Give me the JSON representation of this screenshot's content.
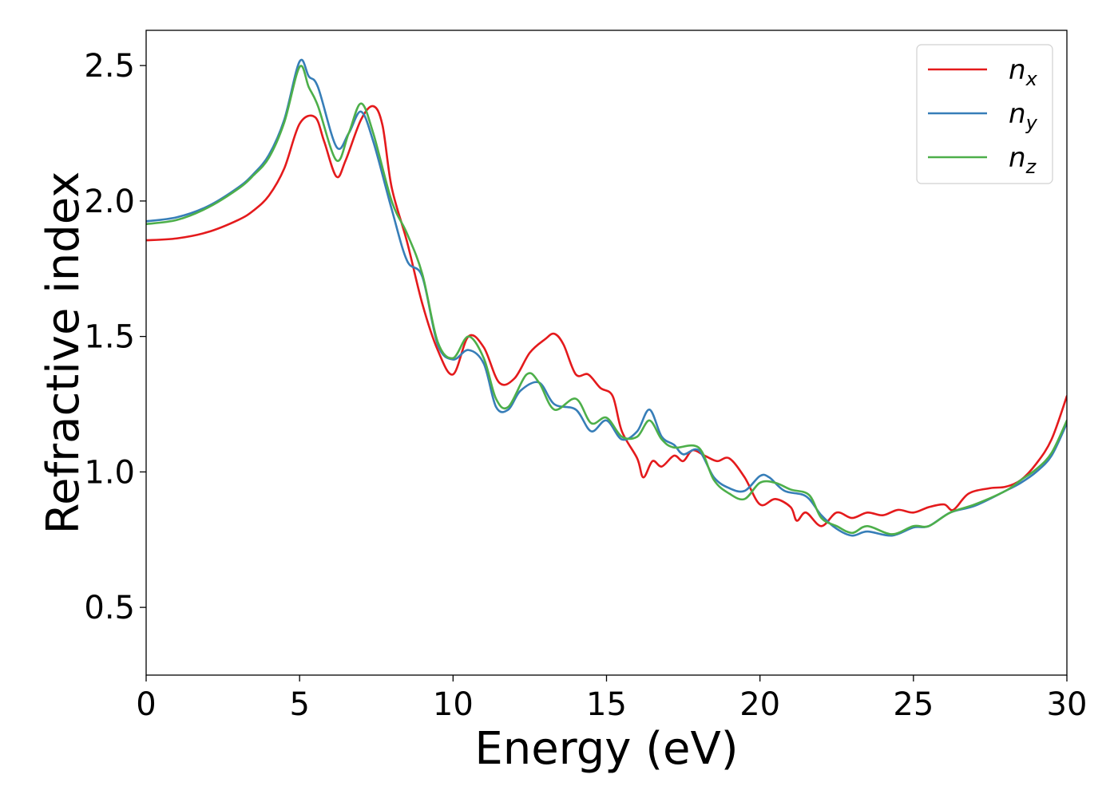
{
  "chart_data": {
    "type": "line",
    "title": "",
    "xlabel": "Energy (eV)",
    "ylabel": "Refractive index",
    "xlim": [
      0,
      30
    ],
    "ylim": [
      0.25,
      2.63
    ],
    "xticks": [
      0,
      5,
      10,
      15,
      20,
      25,
      30
    ],
    "xtick_labels": [
      "0",
      "5",
      "10",
      "15",
      "20",
      "25",
      "30"
    ],
    "yticks": [
      0.5,
      1.0,
      1.5,
      2.0,
      2.5
    ],
    "ytick_labels": [
      "0.5",
      "1.0",
      "1.5",
      "2.0",
      "2.5"
    ],
    "grid": false,
    "legend_position": "top-right",
    "series": [
      {
        "name": "n_x",
        "legend_base": "n",
        "legend_sub": "x",
        "color": "#e41a1c",
        "points": [
          [
            0,
            1.855
          ],
          [
            1,
            1.862
          ],
          [
            2,
            1.885
          ],
          [
            3,
            1.93
          ],
          [
            3.5,
            1.965
          ],
          [
            4,
            2.02
          ],
          [
            4.5,
            2.12
          ],
          [
            5,
            2.285
          ],
          [
            5.5,
            2.31
          ],
          [
            5.8,
            2.22
          ],
          [
            6.2,
            2.09
          ],
          [
            6.5,
            2.15
          ],
          [
            7,
            2.3
          ],
          [
            7.4,
            2.35
          ],
          [
            7.7,
            2.28
          ],
          [
            8,
            2.05
          ],
          [
            8.5,
            1.85
          ],
          [
            9,
            1.62
          ],
          [
            9.5,
            1.45
          ],
          [
            10,
            1.36
          ],
          [
            10.5,
            1.5
          ],
          [
            11,
            1.46
          ],
          [
            11.5,
            1.33
          ],
          [
            12,
            1.345
          ],
          [
            12.5,
            1.44
          ],
          [
            13,
            1.49
          ],
          [
            13.3,
            1.51
          ],
          [
            13.6,
            1.47
          ],
          [
            14,
            1.36
          ],
          [
            14.4,
            1.36
          ],
          [
            14.8,
            1.31
          ],
          [
            15.2,
            1.28
          ],
          [
            15.5,
            1.15
          ],
          [
            16,
            1.05
          ],
          [
            16.2,
            0.98
          ],
          [
            16.5,
            1.04
          ],
          [
            16.8,
            1.02
          ],
          [
            17.2,
            1.06
          ],
          [
            17.5,
            1.04
          ],
          [
            17.8,
            1.08
          ],
          [
            18.2,
            1.06
          ],
          [
            18.6,
            1.04
          ],
          [
            19,
            1.05
          ],
          [
            19.5,
            0.98
          ],
          [
            20,
            0.88
          ],
          [
            20.5,
            0.9
          ],
          [
            21,
            0.87
          ],
          [
            21.2,
            0.82
          ],
          [
            21.5,
            0.85
          ],
          [
            22,
            0.8
          ],
          [
            22.5,
            0.85
          ],
          [
            23,
            0.83
          ],
          [
            23.5,
            0.85
          ],
          [
            24,
            0.84
          ],
          [
            24.5,
            0.86
          ],
          [
            25,
            0.85
          ],
          [
            25.5,
            0.87
          ],
          [
            26,
            0.88
          ],
          [
            26.3,
            0.86
          ],
          [
            26.8,
            0.92
          ],
          [
            27.5,
            0.94
          ],
          [
            28,
            0.945
          ],
          [
            28.5,
            0.97
          ],
          [
            29,
            1.03
          ],
          [
            29.5,
            1.12
          ],
          [
            30,
            1.28
          ]
        ]
      },
      {
        "name": "n_y",
        "legend_base": "n",
        "legend_sub": "y",
        "color": "#377eb8",
        "points": [
          [
            0,
            1.925
          ],
          [
            1,
            1.94
          ],
          [
            2,
            1.98
          ],
          [
            3,
            2.05
          ],
          [
            3.5,
            2.1
          ],
          [
            4,
            2.17
          ],
          [
            4.5,
            2.3
          ],
          [
            5,
            2.515
          ],
          [
            5.3,
            2.46
          ],
          [
            5.6,
            2.42
          ],
          [
            6.2,
            2.2
          ],
          [
            6.6,
            2.25
          ],
          [
            7,
            2.33
          ],
          [
            7.4,
            2.22
          ],
          [
            8,
            1.97
          ],
          [
            8.5,
            1.78
          ],
          [
            9,
            1.72
          ],
          [
            9.5,
            1.47
          ],
          [
            10,
            1.415
          ],
          [
            10.5,
            1.45
          ],
          [
            11,
            1.4
          ],
          [
            11.4,
            1.24
          ],
          [
            11.8,
            1.23
          ],
          [
            12.2,
            1.3
          ],
          [
            12.8,
            1.33
          ],
          [
            13.3,
            1.25
          ],
          [
            14,
            1.23
          ],
          [
            14.5,
            1.15
          ],
          [
            15,
            1.19
          ],
          [
            15.5,
            1.12
          ],
          [
            16,
            1.15
          ],
          [
            16.4,
            1.23
          ],
          [
            16.8,
            1.13
          ],
          [
            17.2,
            1.1
          ],
          [
            17.5,
            1.065
          ],
          [
            18,
            1.08
          ],
          [
            18.5,
            0.98
          ],
          [
            19,
            0.94
          ],
          [
            19.5,
            0.93
          ],
          [
            20,
            0.985
          ],
          [
            20.3,
            0.98
          ],
          [
            20.8,
            0.93
          ],
          [
            21.5,
            0.91
          ],
          [
            22,
            0.84
          ],
          [
            22.5,
            0.79
          ],
          [
            23,
            0.765
          ],
          [
            23.5,
            0.78
          ],
          [
            24.3,
            0.765
          ],
          [
            25,
            0.795
          ],
          [
            25.5,
            0.8
          ],
          [
            26.2,
            0.85
          ],
          [
            27,
            0.875
          ],
          [
            28,
            0.93
          ],
          [
            28.5,
            0.96
          ],
          [
            29,
            1.0
          ],
          [
            29.5,
            1.06
          ],
          [
            30,
            1.18
          ]
        ]
      },
      {
        "name": "n_z",
        "legend_base": "n",
        "legend_sub": "z",
        "color": "#4daf4a",
        "points": [
          [
            0,
            1.915
          ],
          [
            1,
            1.93
          ],
          [
            2,
            1.975
          ],
          [
            3,
            2.045
          ],
          [
            3.5,
            2.095
          ],
          [
            4,
            2.16
          ],
          [
            4.5,
            2.29
          ],
          [
            5,
            2.495
          ],
          [
            5.3,
            2.42
          ],
          [
            5.6,
            2.35
          ],
          [
            6.2,
            2.15
          ],
          [
            6.6,
            2.25
          ],
          [
            7,
            2.36
          ],
          [
            7.4,
            2.25
          ],
          [
            8,
            2.0
          ],
          [
            8.5,
            1.88
          ],
          [
            9,
            1.73
          ],
          [
            9.5,
            1.48
          ],
          [
            10,
            1.42
          ],
          [
            10.5,
            1.5
          ],
          [
            11,
            1.42
          ],
          [
            11.4,
            1.27
          ],
          [
            11.8,
            1.24
          ],
          [
            12.4,
            1.36
          ],
          [
            12.8,
            1.33
          ],
          [
            13.3,
            1.23
          ],
          [
            14,
            1.27
          ],
          [
            14.5,
            1.18
          ],
          [
            15,
            1.2
          ],
          [
            15.5,
            1.13
          ],
          [
            16,
            1.13
          ],
          [
            16.4,
            1.19
          ],
          [
            16.8,
            1.12
          ],
          [
            17.2,
            1.09
          ],
          [
            18,
            1.09
          ],
          [
            18.5,
            0.97
          ],
          [
            19,
            0.92
          ],
          [
            19.5,
            0.9
          ],
          [
            20,
            0.96
          ],
          [
            20.5,
            0.96
          ],
          [
            21,
            0.935
          ],
          [
            21.6,
            0.915
          ],
          [
            22,
            0.83
          ],
          [
            22.5,
            0.8
          ],
          [
            23,
            0.775
          ],
          [
            23.5,
            0.8
          ],
          [
            24.3,
            0.77
          ],
          [
            25,
            0.8
          ],
          [
            25.5,
            0.8
          ],
          [
            26.2,
            0.85
          ],
          [
            27,
            0.88
          ],
          [
            28,
            0.93
          ],
          [
            28.5,
            0.97
          ],
          [
            29,
            1.01
          ],
          [
            29.5,
            1.07
          ],
          [
            30,
            1.19
          ]
        ]
      }
    ]
  }
}
